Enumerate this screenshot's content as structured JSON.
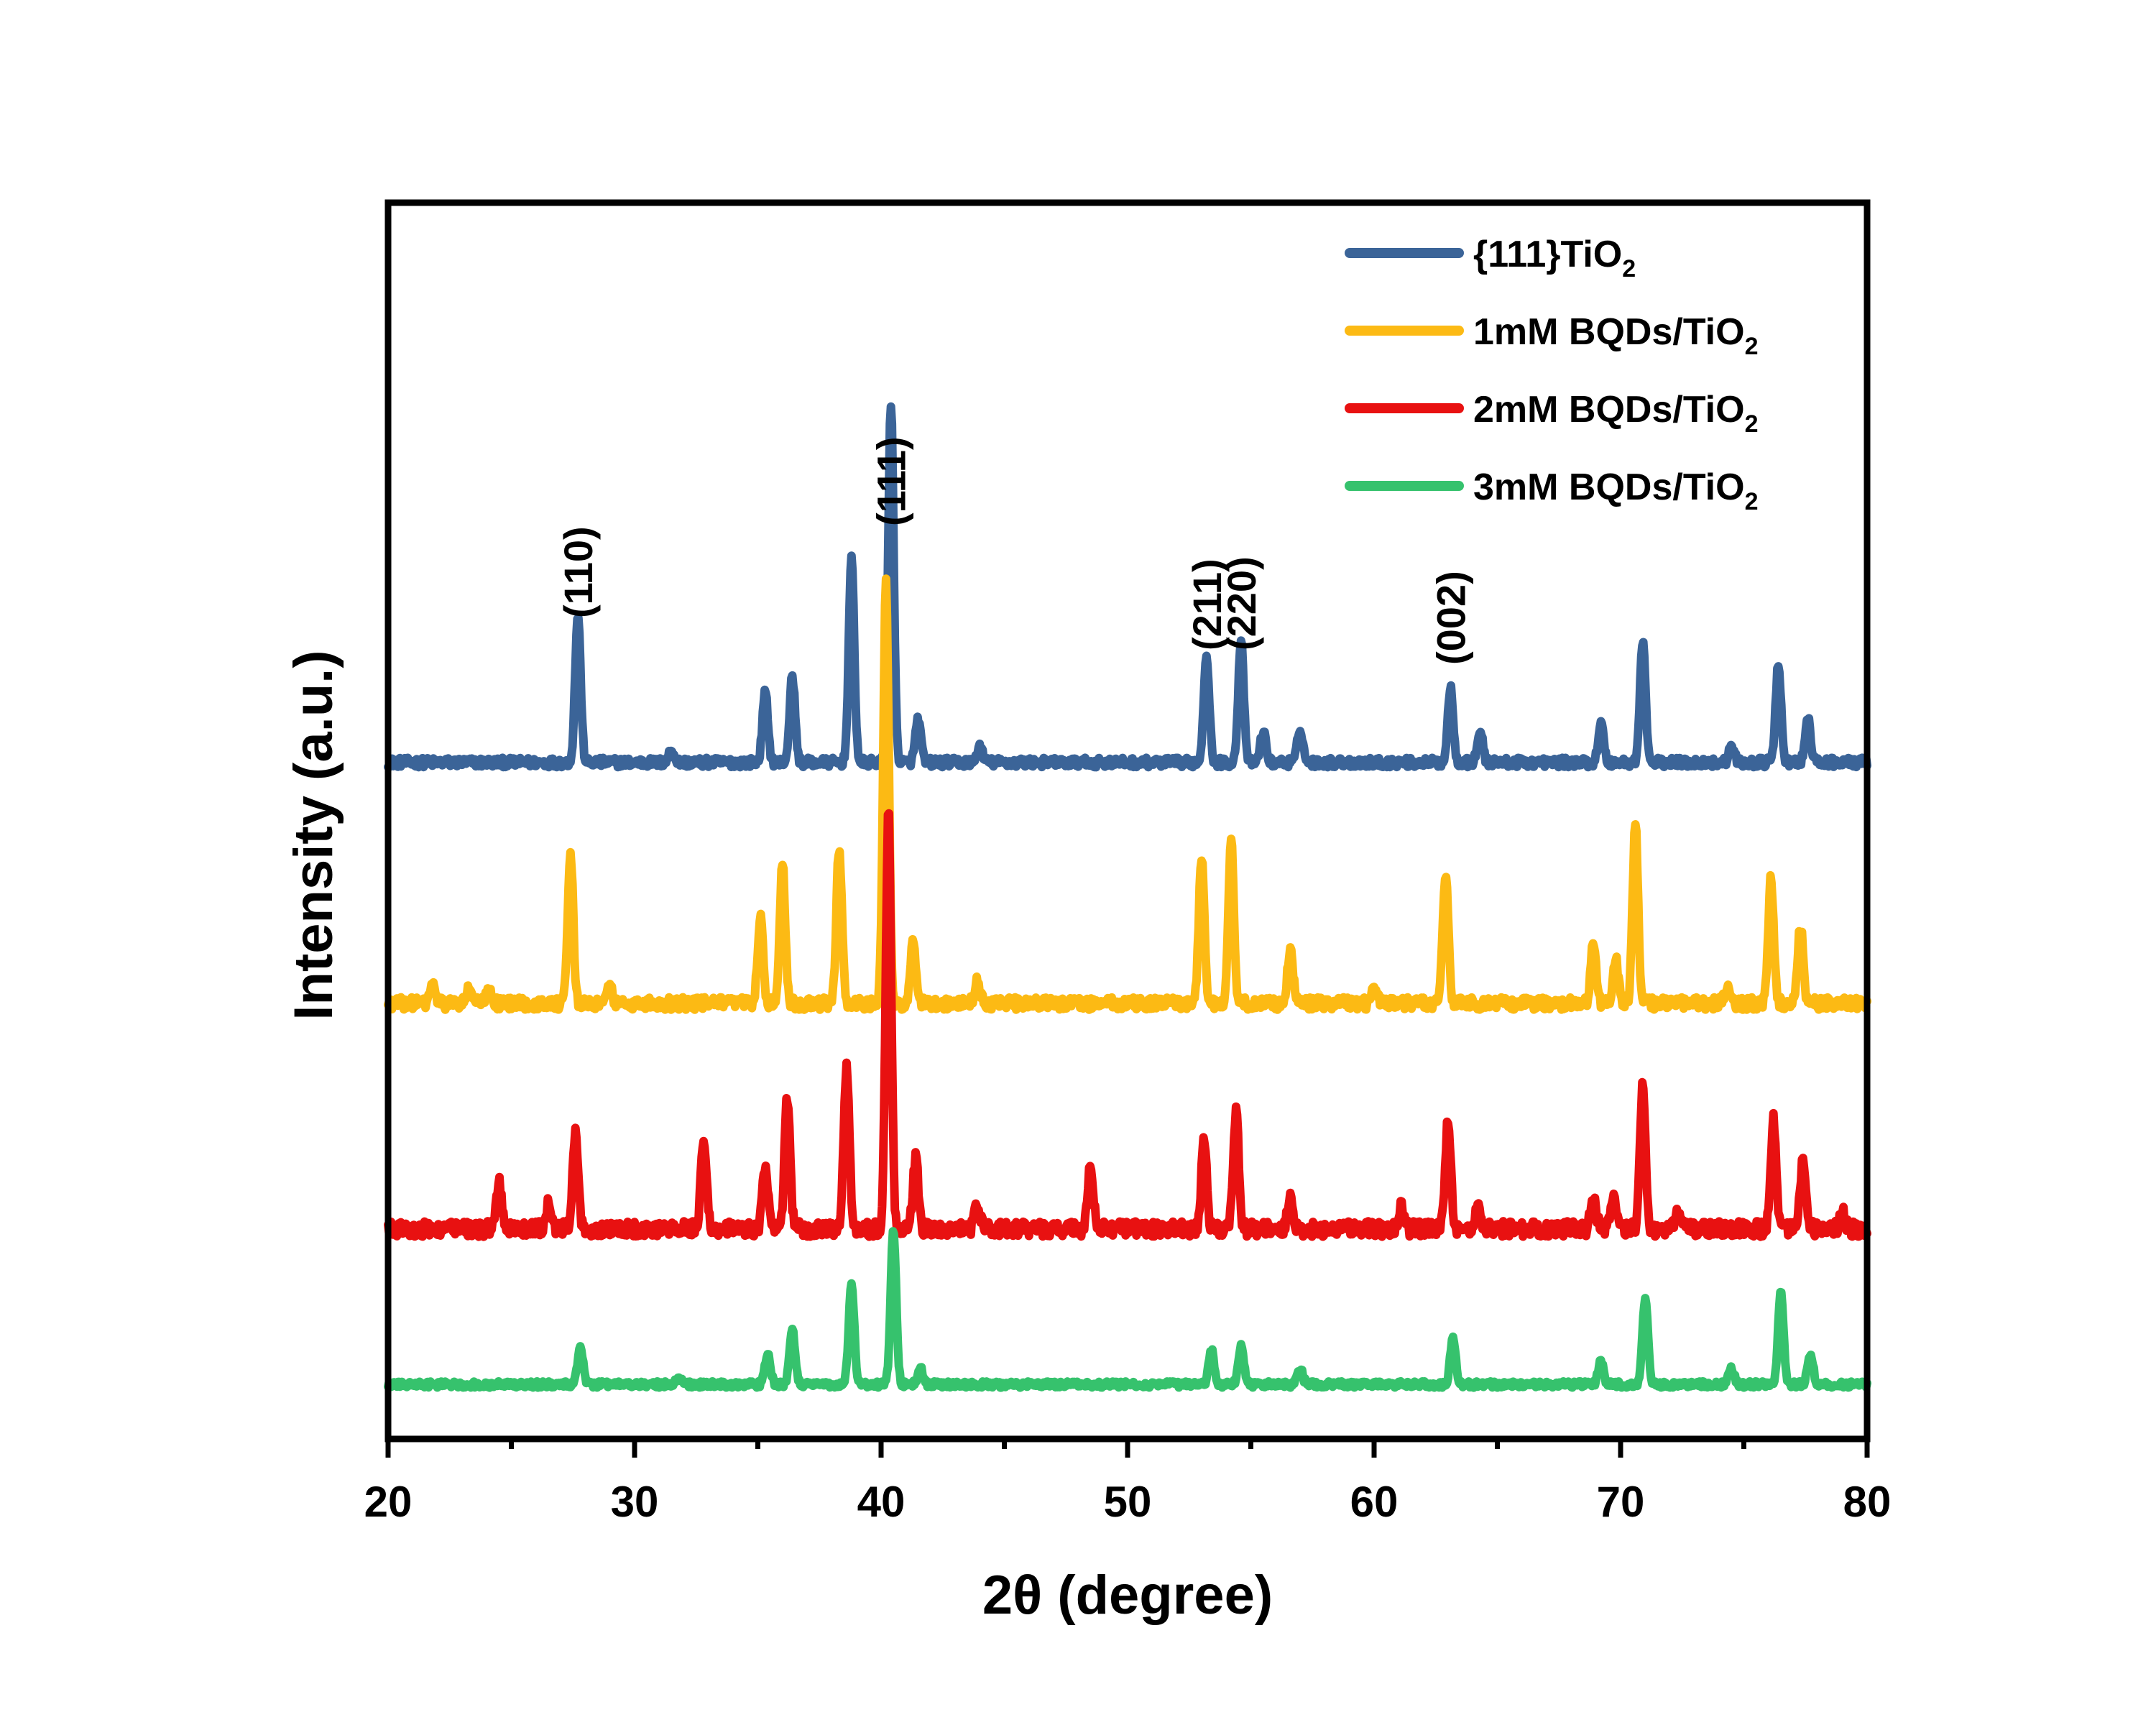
{
  "chart_data": {
    "type": "line",
    "title": "",
    "xlabel": "2θ (degree)",
    "ylabel": "Intensity (a.u.)",
    "xlim": [
      20,
      80
    ],
    "xticks": [
      20,
      30,
      40,
      50,
      60,
      70,
      80
    ],
    "y_ticks_shown": false,
    "grid": false,
    "legend": {
      "position": "top-right",
      "entries": [
        {
          "text": "{111}TiO",
          "sub": "2"
        },
        {
          "text": "1mM BQDs/TiO",
          "sub": "2"
        },
        {
          "text": "2mM BQDs/TiO",
          "sub": "2"
        },
        {
          "text": "3mM BQDs/TiO",
          "sub": "2"
        }
      ]
    },
    "annotations": [
      {
        "text": "(110)",
        "x": 27.7
      },
      {
        "text": "(111)",
        "x": 40.4
      },
      {
        "text": "(211)",
        "x": 53.2
      },
      {
        "text": "(220)",
        "x": 54.6
      },
      {
        "text": "(002)",
        "x": 63.1
      }
    ],
    "series": [
      {
        "name": "{111}TiO2",
        "color": "#3b6498",
        "baseline": 4.0,
        "noise": 0.03,
        "peaks": [
          {
            "x": 27.7,
            "h": 0.95
          },
          {
            "x": 31.5,
            "h": 0.08
          },
          {
            "x": 35.3,
            "h": 0.45
          },
          {
            "x": 36.4,
            "h": 0.55
          },
          {
            "x": 38.8,
            "h": 1.3
          },
          {
            "x": 40.4,
            "h": 2.3
          },
          {
            "x": 41.5,
            "h": 0.28
          },
          {
            "x": 44.0,
            "h": 0.1
          },
          {
            "x": 53.2,
            "h": 0.7
          },
          {
            "x": 54.6,
            "h": 0.78
          },
          {
            "x": 55.5,
            "h": 0.2
          },
          {
            "x": 57.0,
            "h": 0.22
          },
          {
            "x": 63.1,
            "h": 0.48
          },
          {
            "x": 64.3,
            "h": 0.2
          },
          {
            "x": 69.2,
            "h": 0.25
          },
          {
            "x": 70.9,
            "h": 0.78
          },
          {
            "x": 74.5,
            "h": 0.1
          },
          {
            "x": 76.4,
            "h": 0.62
          },
          {
            "x": 77.6,
            "h": 0.28
          }
        ]
      },
      {
        "name": "1mM BQDs/TiO2",
        "color": "#fcba14",
        "baseline": 2.45,
        "noise": 0.04,
        "peaks": [
          {
            "x": 21.8,
            "h": 0.12
          },
          {
            "x": 23.3,
            "h": 0.1
          },
          {
            "x": 24.1,
            "h": 0.1
          },
          {
            "x": 27.4,
            "h": 0.95
          },
          {
            "x": 29.0,
            "h": 0.1
          },
          {
            "x": 35.1,
            "h": 0.55
          },
          {
            "x": 36.0,
            "h": 0.9
          },
          {
            "x": 38.3,
            "h": 1.0
          },
          {
            "x": 40.2,
            "h": 2.7
          },
          {
            "x": 41.3,
            "h": 0.38
          },
          {
            "x": 43.9,
            "h": 0.15
          },
          {
            "x": 53.0,
            "h": 0.95
          },
          {
            "x": 54.2,
            "h": 1.05
          },
          {
            "x": 56.6,
            "h": 0.35
          },
          {
            "x": 60.0,
            "h": 0.1
          },
          {
            "x": 62.9,
            "h": 0.85
          },
          {
            "x": 68.9,
            "h": 0.38
          },
          {
            "x": 69.8,
            "h": 0.28
          },
          {
            "x": 70.6,
            "h": 1.15
          },
          {
            "x": 74.3,
            "h": 0.1
          },
          {
            "x": 76.1,
            "h": 0.8
          },
          {
            "x": 77.3,
            "h": 0.5
          }
        ]
      },
      {
        "name": "2mM BQDs/TiO2",
        "color": "#e81111",
        "baseline": 1.0,
        "noise": 0.05,
        "peaks": [
          {
            "x": 24.5,
            "h": 0.3
          },
          {
            "x": 26.5,
            "h": 0.15
          },
          {
            "x": 27.6,
            "h": 0.6
          },
          {
            "x": 32.8,
            "h": 0.6
          },
          {
            "x": 35.3,
            "h": 0.4
          },
          {
            "x": 36.2,
            "h": 0.85
          },
          {
            "x": 38.6,
            "h": 1.05
          },
          {
            "x": 40.3,
            "h": 2.7
          },
          {
            "x": 41.4,
            "h": 0.45
          },
          {
            "x": 43.9,
            "h": 0.15
          },
          {
            "x": 48.5,
            "h": 0.42
          },
          {
            "x": 53.1,
            "h": 0.55
          },
          {
            "x": 54.4,
            "h": 0.75
          },
          {
            "x": 56.6,
            "h": 0.2
          },
          {
            "x": 61.1,
            "h": 0.15
          },
          {
            "x": 63.0,
            "h": 0.7
          },
          {
            "x": 64.2,
            "h": 0.15
          },
          {
            "x": 68.9,
            "h": 0.2
          },
          {
            "x": 69.7,
            "h": 0.2
          },
          {
            "x": 70.9,
            "h": 0.95
          },
          {
            "x": 72.3,
            "h": 0.1
          },
          {
            "x": 76.2,
            "h": 0.7
          },
          {
            "x": 77.4,
            "h": 0.45
          },
          {
            "x": 79.0,
            "h": 0.1
          }
        ]
      },
      {
        "name": "3mM BQDs/TiO2",
        "color": "#36c26d",
        "baseline": 0.0,
        "noise": 0.02,
        "peaks": [
          {
            "x": 27.8,
            "h": 0.25
          },
          {
            "x": 31.8,
            "h": 0.05
          },
          {
            "x": 35.4,
            "h": 0.2
          },
          {
            "x": 36.4,
            "h": 0.35
          },
          {
            "x": 38.8,
            "h": 0.65
          },
          {
            "x": 40.5,
            "h": 1.0
          },
          {
            "x": 41.6,
            "h": 0.1
          },
          {
            "x": 53.4,
            "h": 0.22
          },
          {
            "x": 54.6,
            "h": 0.25
          },
          {
            "x": 57.0,
            "h": 0.1
          },
          {
            "x": 63.2,
            "h": 0.3
          },
          {
            "x": 69.2,
            "h": 0.15
          },
          {
            "x": 71.0,
            "h": 0.55
          },
          {
            "x": 74.5,
            "h": 0.1
          },
          {
            "x": 76.5,
            "h": 0.6
          },
          {
            "x": 77.7,
            "h": 0.2
          }
        ]
      }
    ]
  }
}
